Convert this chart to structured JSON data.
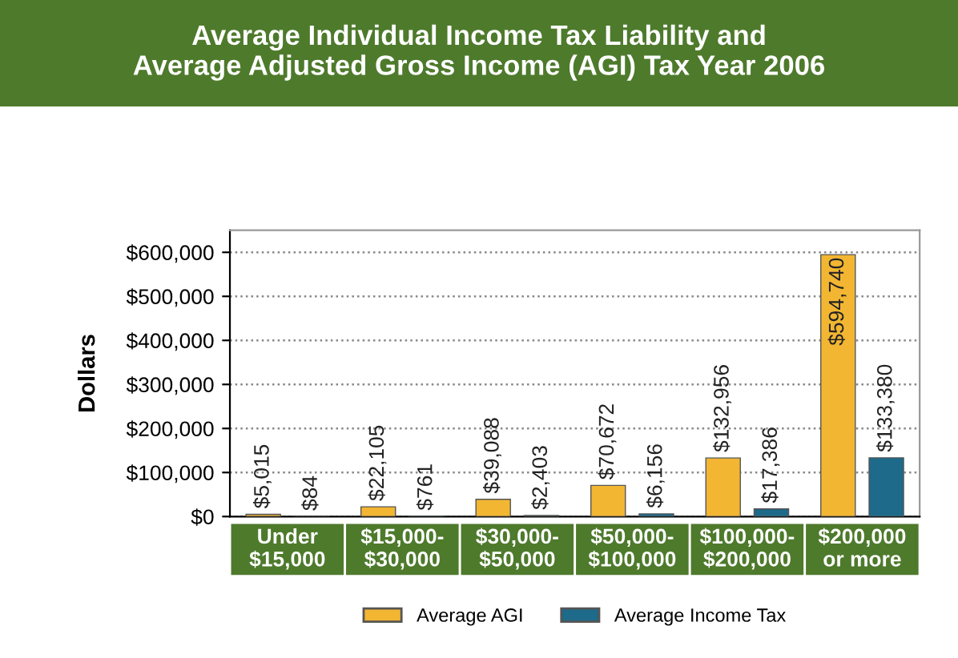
{
  "chart_data": {
    "type": "bar",
    "title": "Average Individual Income Tax Liability and\nAverage Adjusted Gross Income (AGI) Tax Year 2006",
    "ylabel": "Dollars",
    "categories": [
      "Under\n$15,000",
      "$15,000-\n$30,000",
      "$30,000-\n$50,000",
      "$50,000-\n$100,000",
      "$100,000-\n$200,000",
      "$200,000\nor more"
    ],
    "series": [
      {
        "name": "Average AGI",
        "color": "#f2b632",
        "values": [
          5015,
          22105,
          39088,
          70672,
          132956,
          594740
        ],
        "value_labels": [
          "$5,015",
          "$22,105",
          "$39,088",
          "$70,672",
          "$132,956",
          "$594,740"
        ]
      },
      {
        "name": "Average Income Tax",
        "color": "#1d6a8a",
        "values": [
          84,
          761,
          2403,
          6156,
          17386,
          133380
        ],
        "value_labels": [
          "$84",
          "$761",
          "$2,403",
          "$6,156",
          "$17,386",
          "$133,380"
        ]
      }
    ],
    "ylim": [
      0,
      650000
    ],
    "yticks": [
      {
        "value": 0,
        "label": "$0"
      },
      {
        "value": 100000,
        "label": "$100,000"
      },
      {
        "value": 200000,
        "label": "$200,000"
      },
      {
        "value": 300000,
        "label": "$300,000"
      },
      {
        "value": 400000,
        "label": "$400,000"
      },
      {
        "value": 500000,
        "label": "$500,000"
      },
      {
        "value": 600000,
        "label": "$600,000"
      }
    ],
    "grid": "y",
    "legend": "bottom"
  }
}
